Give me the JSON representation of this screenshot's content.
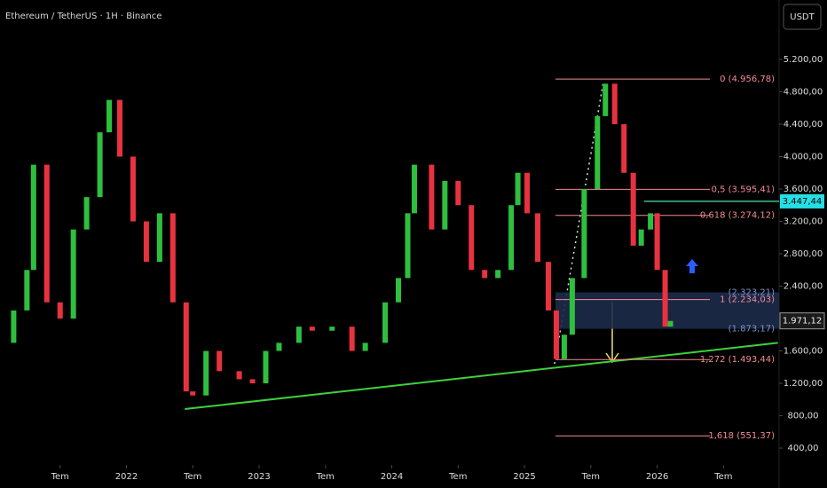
{
  "currency_button": "USDT",
  "chart_data": {
    "type": "candlestick",
    "title": "Ethereum / TetherUS · 1H · Binance",
    "xlim": [
      2021.047,
      2026.919
    ],
    "ylim": [
      236,
      5934
    ],
    "xticks": [
      {
        "value": 2021.5,
        "label": "Tem"
      },
      2022,
      {
        "value": 2022.5,
        "label": "Tem"
      },
      2023,
      {
        "value": 2023.5,
        "label": "Tem"
      },
      2024,
      {
        "value": 2024.5,
        "label": "Tem"
      },
      2025,
      {
        "value": 2025.5,
        "label": "Tem"
      },
      2026,
      {
        "value": 2026.5,
        "label": "Tem"
      }
    ],
    "yticks": [
      {
        "value": 5200,
        "label": "5.200,00"
      },
      {
        "value": 4800,
        "label": "4.800,00"
      },
      {
        "value": 4400,
        "label": "4.400,00"
      },
      {
        "value": 4000,
        "label": "4.000,00"
      },
      {
        "value": 3600,
        "label": "3.600,00"
      },
      {
        "value": 3200,
        "label": "3.200,00"
      },
      {
        "value": 2800,
        "label": "2.800,00"
      },
      {
        "value": 2400,
        "label": "2.400,00"
      },
      {
        "value": 1600,
        "label": "1.600,00"
      },
      {
        "value": 1200,
        "label": "1.200,00"
      },
      {
        "value": 800,
        "label": "800,00"
      },
      {
        "value": 400,
        "label": "400,00"
      }
    ],
    "up_color": "#2fbf3f",
    "down_color": "#e8323f",
    "x": [
      2021.05,
      2021.15,
      2021.25,
      2021.3,
      2021.4,
      2021.5,
      2021.6,
      2021.7,
      2021.8,
      2021.87,
      2021.95,
      2022.05,
      2022.15,
      2022.25,
      2022.35,
      2022.45,
      2022.5,
      2022.6,
      2022.7,
      2022.85,
      2022.95,
      2023.05,
      2023.15,
      2023.3,
      2023.4,
      2023.55,
      2023.7,
      2023.8,
      2023.95,
      2024.05,
      2024.12,
      2024.17,
      2024.3,
      2024.4,
      2024.5,
      2024.6,
      2024.7,
      2024.8,
      2024.9,
      2024.95,
      2025.02,
      2025.1,
      2025.18,
      2025.24,
      2025.3,
      2025.36,
      2025.45,
      2025.55,
      2025.61,
      2025.68,
      2025.75,
      2025.82,
      2025.88,
      2025.95,
      2026.0,
      2026.06,
      2026.1
    ],
    "values": [
      1700,
      2100,
      2600,
      3900,
      2200,
      2000,
      3100,
      3500,
      4300,
      4700,
      4000,
      3200,
      2700,
      3300,
      2200,
      1100,
      1050,
      1600,
      1350,
      1250,
      1200,
      1600,
      1700,
      1900,
      1850,
      1900,
      1600,
      1700,
      2200,
      2500,
      3300,
      3900,
      3100,
      3700,
      3400,
      2600,
      2500,
      2600,
      3400,
      3800,
      3300,
      2700,
      2100,
      1500,
      1800,
      2500,
      3600,
      4500,
      4900,
      4400,
      3800,
      2900,
      3100,
      3300,
      2600,
      1900,
      1970
    ],
    "fib_levels": [
      {
        "value": 4956.78,
        "label": "0 (4.956,78)"
      },
      {
        "value": 3595.41,
        "label": "0,5 (3.595,41)"
      },
      {
        "value": 3274.12,
        "label": "0,618 (3.274,12)"
      },
      {
        "value": 2234.03,
        "label": "1 (2.234,03)"
      },
      {
        "value": 1493.44,
        "label": "1,272 (1.493,44)"
      },
      {
        "value": 551.37,
        "label": "1,618 (551,37)"
      }
    ],
    "fib_color": "#f28b94",
    "zone": {
      "top": {
        "value": 2323.21,
        "label": "(2.323,21)"
      },
      "bottom": {
        "value": 1873.17,
        "label": "(1.873,17)"
      },
      "color": "#1c2b4a"
    },
    "alert_level": {
      "value": 3447.44,
      "label": "3.447,44",
      "color": "#22e0e6"
    },
    "last_price": {
      "value": 1971.12,
      "label": "1.971,12"
    },
    "trendline": {
      "x": [
        2022.44,
        2026.91
      ],
      "values": [
        882,
        1700
      ],
      "color": "#3fd13a"
    }
  }
}
